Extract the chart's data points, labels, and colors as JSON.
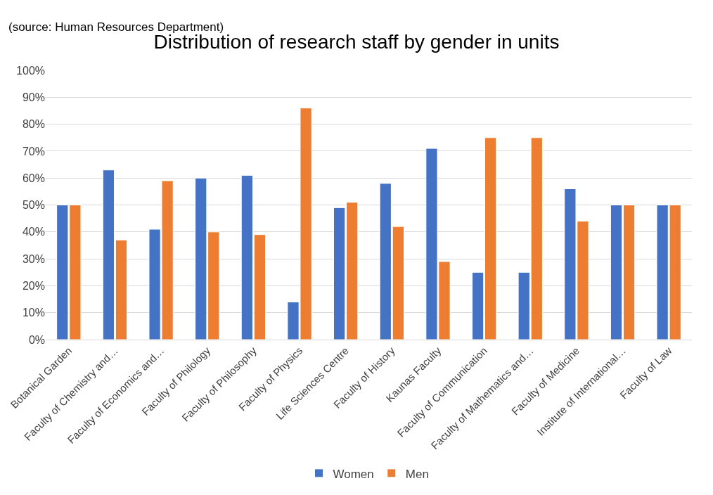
{
  "chart_data": {
    "type": "bar",
    "title": "Distribution of research staff by gender in units",
    "annotations": [
      "(source: Human Resources Department)"
    ],
    "categories": [
      "Botanical Garden",
      "Faculty of Chemistry and…",
      "Faculty of Economics and…",
      "Faculty of Philology",
      "Faculty of Philosophy",
      "Faculty of Physics",
      "Life Sciences Centre",
      "Faculty of History",
      "Kaunas Faculty",
      "Faculty of Communication",
      "Faculty of Mathematics and…",
      "Faculty of Medicine",
      "Institute of International…",
      "Faculty of Law"
    ],
    "series": [
      {
        "name": "Women",
        "color": "#4472c4",
        "values": [
          50,
          63,
          41,
          60,
          61,
          14,
          49,
          58,
          71,
          25,
          25,
          56,
          50,
          50
        ]
      },
      {
        "name": "Men",
        "color": "#ed7d31",
        "values": [
          50,
          37,
          59,
          40,
          39,
          86,
          51,
          42,
          29,
          75,
          75,
          44,
          50,
          50
        ]
      }
    ],
    "ylim": [
      0,
      100
    ],
    "yticks": [
      {
        "value": 0,
        "label": "0%"
      },
      {
        "value": 10,
        "label": "10%"
      },
      {
        "value": 20,
        "label": "20%"
      },
      {
        "value": 30,
        "label": "30%"
      },
      {
        "value": 40,
        "label": "40%"
      },
      {
        "value": 50,
        "label": "50%"
      },
      {
        "value": 60,
        "label": "60%"
      },
      {
        "value": 70,
        "label": "70%"
      },
      {
        "value": 80,
        "label": "80%"
      },
      {
        "value": 90,
        "label": "90%"
      },
      {
        "value": 100,
        "label": "100%"
      }
    ],
    "grid": "y",
    "legend": "bottom"
  }
}
